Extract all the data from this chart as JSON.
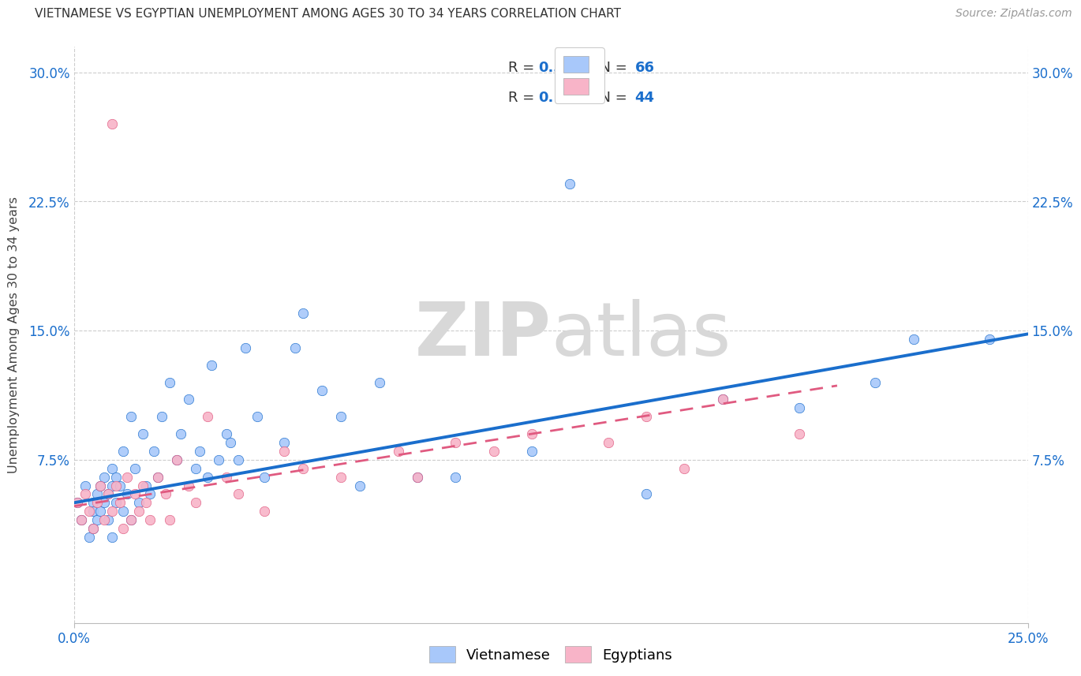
{
  "title": "VIETNAMESE VS EGYPTIAN UNEMPLOYMENT AMONG AGES 30 TO 34 YEARS CORRELATION CHART",
  "source": "Source: ZipAtlas.com",
  "ylabel_label": "Unemployment Among Ages 30 to 34 years",
  "viet_R": "0.309",
  "viet_N": "66",
  "egypt_R": "0.122",
  "egypt_N": "44",
  "viet_color": "#a8c8fa",
  "egypt_color": "#f8b4c8",
  "viet_line_color": "#1a6ecc",
  "egypt_line_color": "#e05a80",
  "background_color": "#ffffff",
  "watermark_color": "#d8d8d8",
  "xlim": [
    0.0,
    0.25
  ],
  "ylim": [
    -0.02,
    0.315
  ],
  "y_tick_vals": [
    0.075,
    0.15,
    0.225,
    0.3
  ],
  "y_tick_labels": [
    "7.5%",
    "15.0%",
    "22.5%",
    "30.0%"
  ],
  "x_tick_vals": [
    0.0,
    0.25
  ],
  "x_tick_labels": [
    "0.0%",
    "25.0%"
  ],
  "viet_scatter_x": [
    0.001,
    0.002,
    0.003,
    0.004,
    0.005,
    0.005,
    0.005,
    0.006,
    0.006,
    0.007,
    0.007,
    0.008,
    0.008,
    0.009,
    0.009,
    0.01,
    0.01,
    0.01,
    0.011,
    0.011,
    0.012,
    0.013,
    0.013,
    0.014,
    0.015,
    0.015,
    0.016,
    0.017,
    0.018,
    0.019,
    0.02,
    0.021,
    0.022,
    0.023,
    0.025,
    0.027,
    0.028,
    0.03,
    0.032,
    0.033,
    0.035,
    0.036,
    0.038,
    0.04,
    0.041,
    0.043,
    0.045,
    0.048,
    0.05,
    0.055,
    0.058,
    0.06,
    0.065,
    0.07,
    0.075,
    0.08,
    0.09,
    0.1,
    0.12,
    0.13,
    0.15,
    0.17,
    0.19,
    0.21,
    0.22,
    0.24
  ],
  "viet_scatter_y": [
    0.05,
    0.04,
    0.06,
    0.03,
    0.05,
    0.035,
    0.045,
    0.04,
    0.055,
    0.045,
    0.06,
    0.05,
    0.065,
    0.055,
    0.04,
    0.03,
    0.06,
    0.07,
    0.05,
    0.065,
    0.06,
    0.045,
    0.08,
    0.055,
    0.04,
    0.1,
    0.07,
    0.05,
    0.09,
    0.06,
    0.055,
    0.08,
    0.065,
    0.1,
    0.12,
    0.075,
    0.09,
    0.11,
    0.07,
    0.08,
    0.065,
    0.13,
    0.075,
    0.09,
    0.085,
    0.075,
    0.14,
    0.1,
    0.065,
    0.085,
    0.14,
    0.16,
    0.115,
    0.1,
    0.06,
    0.12,
    0.065,
    0.065,
    0.08,
    0.235,
    0.055,
    0.11,
    0.105,
    0.12,
    0.145,
    0.145
  ],
  "egypt_scatter_x": [
    0.001,
    0.002,
    0.003,
    0.004,
    0.005,
    0.006,
    0.007,
    0.008,
    0.009,
    0.01,
    0.011,
    0.012,
    0.013,
    0.014,
    0.015,
    0.016,
    0.017,
    0.018,
    0.019,
    0.02,
    0.022,
    0.024,
    0.025,
    0.027,
    0.03,
    0.032,
    0.035,
    0.04,
    0.043,
    0.05,
    0.055,
    0.06,
    0.07,
    0.085,
    0.09,
    0.1,
    0.11,
    0.12,
    0.14,
    0.15,
    0.16,
    0.17,
    0.19,
    0.01
  ],
  "egypt_scatter_y": [
    0.05,
    0.04,
    0.055,
    0.045,
    0.035,
    0.05,
    0.06,
    0.04,
    0.055,
    0.045,
    0.06,
    0.05,
    0.035,
    0.065,
    0.04,
    0.055,
    0.045,
    0.06,
    0.05,
    0.04,
    0.065,
    0.055,
    0.04,
    0.075,
    0.06,
    0.05,
    0.1,
    0.065,
    0.055,
    0.045,
    0.08,
    0.07,
    0.065,
    0.08,
    0.065,
    0.085,
    0.08,
    0.09,
    0.085,
    0.1,
    0.07,
    0.11,
    0.09,
    0.27
  ],
  "viet_line_x": [
    0.0,
    0.25
  ],
  "viet_line_y": [
    0.05,
    0.148
  ],
  "egypt_line_x": [
    0.0,
    0.2
  ],
  "egypt_line_y": [
    0.048,
    0.118
  ]
}
